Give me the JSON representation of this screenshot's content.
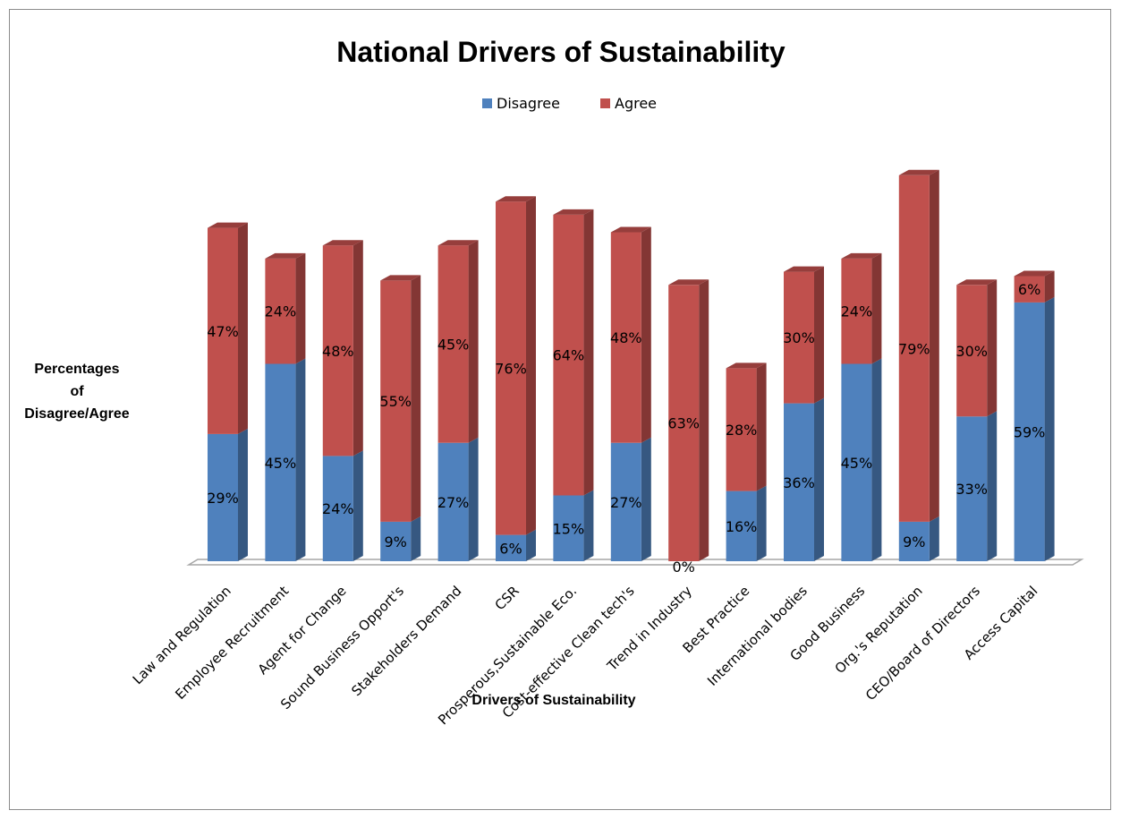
{
  "chart_data": {
    "type": "bar",
    "stacked": true,
    "three_d": true,
    "title": "National Drivers of Sustainability",
    "xlabel": "Drivers of Sustainability",
    "ylabel_lines": [
      "Percentages",
      "of",
      "Disagree/Agree"
    ],
    "legend_position": "top",
    "grid": false,
    "categories": [
      "Law and Regulation",
      "Employee Recruitment",
      "Agent for Change",
      "Sound Business Opport's",
      "Stakeholders  Demand",
      "CSR",
      "Prosperous,Sustainable Eco.",
      "Cost-effective Clean tech's",
      "Trend in Industry",
      "Best Practice",
      "International bodies",
      "Good Business",
      "Org.'s Reputation",
      "CEO/Board of Directors",
      "Access Capital"
    ],
    "series": [
      {
        "name": "Disagree",
        "color": "#4f81bd",
        "values": [
          29,
          45,
          24,
          9,
          27,
          6,
          15,
          27,
          0,
          16,
          36,
          45,
          9,
          33,
          59
        ],
        "labels": [
          "29%",
          "45%",
          "24%",
          "9%",
          "27%",
          "6%",
          "15%",
          "27%",
          "0%",
          "16%",
          "36%",
          "45%",
          "9%",
          "33%",
          "59%"
        ]
      },
      {
        "name": "Agree",
        "color": "#c0504d",
        "values": [
          47,
          24,
          48,
          55,
          45,
          76,
          64,
          48,
          63,
          28,
          30,
          24,
          79,
          30,
          6
        ],
        "labels": [
          "47%",
          "24%",
          "48%",
          "55%",
          "45%",
          "76%",
          "64%",
          "48%",
          "63%",
          "28%",
          "30%",
          "24%",
          "79%",
          "30%",
          "6%"
        ]
      }
    ]
  }
}
